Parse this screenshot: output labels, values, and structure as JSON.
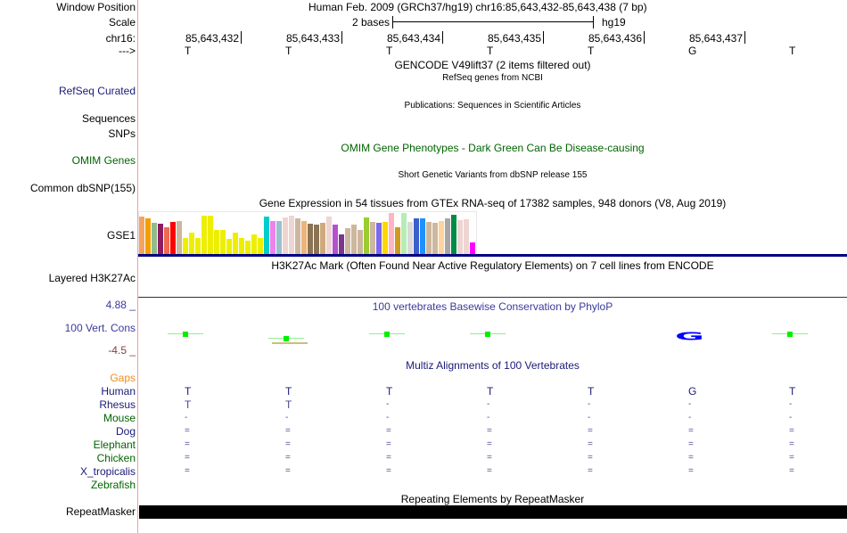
{
  "header": {
    "window_position_label": "Window Position",
    "window_position": "Human Feb. 2009 (GRCh37/hg19)   chr16:85,643,432-85,643,438 (7 bp)",
    "scale_label": "Scale",
    "scale_text": "2 bases",
    "assembly": "hg19",
    "chrom_label": "chr16:",
    "strand_label": "--->"
  },
  "ruler": {
    "positions": [
      "85,643,432",
      "85,643,433",
      "85,643,434",
      "85,643,435",
      "85,643,436",
      "85,643,437"
    ],
    "bases": [
      "T",
      "T",
      "T",
      "T",
      "T",
      "G",
      "T"
    ]
  },
  "tracks": {
    "gencode_title": "GENCODE V49lift37 (2 items filtered out)",
    "refseq_title": "RefSeq genes from NCBI",
    "refseq_label": "RefSeq Curated",
    "pubs_title": "Publications: Sequences in Scientific Articles",
    "sequences_label": "Sequences",
    "snps_label": "SNPs",
    "omim_title": "OMIM Gene Phenotypes - Dark Green Can Be Disease-causing",
    "omim_label": "OMIM Genes",
    "dbsnp_title": "Short Genetic Variants from dbSNP release 155",
    "dbsnp_label": "Common dbSNP(155)",
    "gtex_title": "Gene Expression in 54 tissues from GTEx RNA-seq of 17382 samples, 948 donors (V8, Aug 2019)",
    "gtex_label": "GSE1",
    "h3k27ac_title": "H3K27Ac Mark (Often Found Near Active Regulatory Elements) on 7 cell lines from ENCODE",
    "h3k27ac_label": "Layered H3K27Ac",
    "phylop_title": "100 vertebrates Basewise Conservation by PhyloP",
    "phylop_label": "100 Vert. Cons",
    "phylop_max": "4.88 _",
    "phylop_min": "-4.5 _",
    "multiz_title": "Multiz Alignments of 100 Vertebrates",
    "gaps_label": "Gaps",
    "repeat_title": "Repeating Elements by RepeatMasker",
    "repeat_label": "RepeatMasker"
  },
  "multiz": [
    {
      "species": "Human",
      "color": "#1a1a78",
      "bases": [
        "T",
        "T",
        "T",
        "T",
        "T",
        "G",
        "T"
      ]
    },
    {
      "species": "Rhesus",
      "color": "#1a1a78",
      "bases": [
        "T",
        "T",
        "-",
        "-",
        "-",
        "-",
        "-"
      ]
    },
    {
      "species": "Mouse",
      "color": "#006400",
      "bases": [
        "-",
        "-",
        "-",
        "-",
        "-",
        "-",
        "-"
      ]
    },
    {
      "species": "Dog",
      "color": "#1a1a78",
      "bases": [
        "=",
        "=",
        "=",
        "=",
        "=",
        "=",
        "="
      ]
    },
    {
      "species": "Elephant",
      "color": "#006400",
      "bases": [
        "=",
        "=",
        "=",
        "=",
        "=",
        "=",
        "="
      ]
    },
    {
      "species": "Chicken",
      "color": "#006400",
      "bases": [
        "=",
        "=",
        "=",
        "=",
        "=",
        "=",
        "="
      ]
    },
    {
      "species": "X_tropicalis",
      "color": "#1a1a78",
      "bases": [
        "=",
        "=",
        "=",
        "=",
        "=",
        "=",
        "="
      ]
    },
    {
      "species": "Zebrafish",
      "color": "#006400",
      "bases": [
        "",
        "",
        "",
        "",
        "",
        "",
        ""
      ]
    }
  ],
  "gtex_bars": [
    [
      0.91,
      "#f4a460"
    ],
    [
      0.88,
      "#f0a000"
    ],
    [
      0.77,
      "#8fbc8f"
    ],
    [
      0.74,
      "#8b1c62"
    ],
    [
      0.66,
      "#ee6a50"
    ],
    [
      0.79,
      "#ff0000"
    ],
    [
      0.81,
      "#cdb79e"
    ],
    [
      0.39,
      "#eeee00"
    ],
    [
      0.52,
      "#eeee00"
    ],
    [
      0.39,
      "#eeee00"
    ],
    [
      0.93,
      "#eeee00"
    ],
    [
      0.93,
      "#eeee00"
    ],
    [
      0.58,
      "#eeee00"
    ],
    [
      0.58,
      "#eeee00"
    ],
    [
      0.37,
      "#eeee00"
    ],
    [
      0.52,
      "#eeee00"
    ],
    [
      0.39,
      "#eeee00"
    ],
    [
      0.33,
      "#eeee00"
    ],
    [
      0.48,
      "#eeee00"
    ],
    [
      0.39,
      "#eeee00"
    ],
    [
      0.91,
      "#00cdcd"
    ],
    [
      0.81,
      "#ee82ee"
    ],
    [
      0.81,
      "#9ac0cd"
    ],
    [
      0.89,
      "#eed5d2"
    ],
    [
      0.93,
      "#eed5d2"
    ],
    [
      0.87,
      "#cdb79e"
    ],
    [
      0.81,
      "#eeb479"
    ],
    [
      0.74,
      "#8b7355"
    ],
    [
      0.72,
      "#8b7355"
    ],
    [
      0.77,
      "#cdaa7d"
    ],
    [
      0.91,
      "#eed5d2"
    ],
    [
      0.72,
      "#b452cd"
    ],
    [
      0.48,
      "#7a378b"
    ],
    [
      0.64,
      "#cdb79e"
    ],
    [
      0.72,
      "#cdb79e"
    ],
    [
      0.58,
      "#cdb79e"
    ],
    [
      0.89,
      "#9acd32"
    ],
    [
      0.79,
      "#cdb79e"
    ],
    [
      0.77,
      "#7b68ee"
    ],
    [
      0.79,
      "#ffd700"
    ],
    [
      0.99,
      "#ffb6c1"
    ],
    [
      0.66,
      "#cd9b1d"
    ],
    [
      1.0,
      "#b4eeb4"
    ],
    [
      0.79,
      "#d9d9d9"
    ],
    [
      0.87,
      "#3a5fcd"
    ],
    [
      0.87,
      "#1e90ff"
    ],
    [
      0.79,
      "#cdb79e"
    ],
    [
      0.77,
      "#cdb79e"
    ],
    [
      0.81,
      "#ffd39b"
    ],
    [
      0.87,
      "#a6a6a6"
    ],
    [
      0.95,
      "#008b45"
    ],
    [
      0.83,
      "#eed5d2"
    ],
    [
      0.85,
      "#eed5d2"
    ],
    [
      0.29,
      "#ff00ff"
    ]
  ]
}
